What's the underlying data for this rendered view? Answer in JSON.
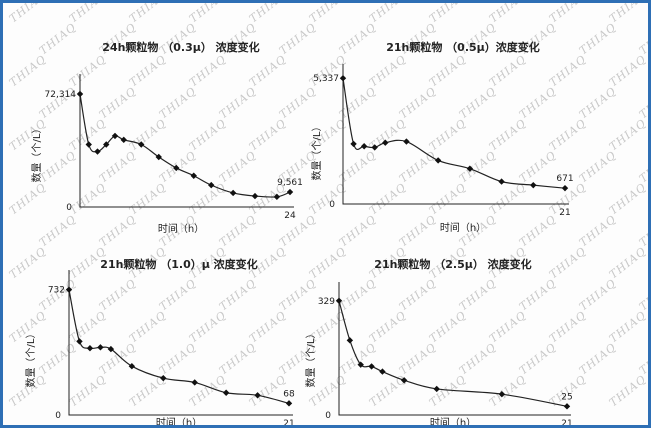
{
  "watermark_text": "THIAQ",
  "chart_data": [
    {
      "type": "line",
      "title": "24h颗粒物 （0.3μ） 浓度变化",
      "xlabel": "时间（h）",
      "ylabel": "数量（个/L）",
      "x_end_label": "24",
      "y_zero_label": "0",
      "xlim": [
        0,
        24
      ],
      "ylim": [
        0,
        80000
      ],
      "x": [
        0,
        1,
        2,
        3,
        4,
        5,
        7,
        9,
        11,
        13,
        15,
        17.5,
        20,
        22.5,
        24
      ],
      "values": [
        72314,
        40000,
        35500,
        40000,
        45500,
        43000,
        40000,
        32000,
        25000,
        20000,
        14000,
        9000,
        7000,
        6500,
        9561
      ],
      "labels": {
        "first": "72,314",
        "last": "9,561"
      }
    },
    {
      "type": "line",
      "title": "21h颗粒物 （0.5μ）浓度变化",
      "xlabel": "时间（h）",
      "ylabel": "数量（个/L）",
      "x_end_label": "21",
      "y_zero_label": "0",
      "xlim": [
        0,
        21
      ],
      "ylim": [
        0,
        5600
      ],
      "x": [
        0,
        1,
        2,
        3,
        4,
        6,
        9,
        12,
        15,
        18,
        21
      ],
      "values": [
        5337,
        2550,
        2450,
        2400,
        2600,
        2650,
        1850,
        1500,
        950,
        800,
        671
      ],
      "labels": {
        "first": "5,337",
        "last": "671"
      }
    },
    {
      "type": "line",
      "title": "21h颗粒物 （1.0）μ 浓度变化",
      "xlabel": "时间（h）",
      "ylabel": "数量（个/L）",
      "x_end_label": "21",
      "y_zero_label": "0",
      "xlim": [
        0,
        21
      ],
      "ylim": [
        0,
        800
      ],
      "x": [
        0,
        1,
        2,
        3,
        4,
        6,
        9,
        12,
        15,
        18,
        21
      ],
      "values": [
        732,
        430,
        390,
        395,
        385,
        285,
        215,
        190,
        130,
        115,
        68
      ],
      "labels": {
        "first": "732",
        "last": "68"
      }
    },
    {
      "type": "line",
      "title": "21h颗粒物 （2.5μ） 浓度变化",
      "xlabel": "时间（h）",
      "ylabel": "数量（个/L）",
      "x_end_label": "21",
      "y_zero_label": "0",
      "xlim": [
        0,
        21
      ],
      "ylim": [
        0,
        360
      ],
      "x": [
        0,
        1,
        2,
        3,
        4,
        6,
        9,
        15,
        21
      ],
      "values": [
        329,
        215,
        145,
        140,
        125,
        100,
        75,
        60,
        25
      ],
      "labels": {
        "first": "329",
        "last": "25"
      }
    }
  ]
}
